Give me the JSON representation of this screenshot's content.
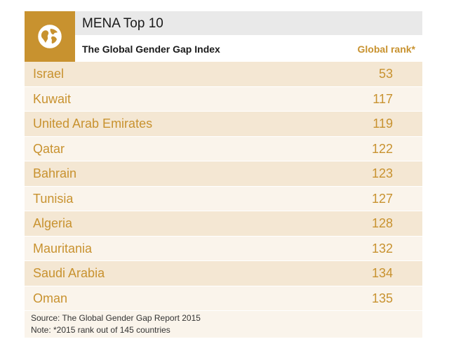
{
  "header": {
    "title": "MENA Top 10",
    "subtitle": "The Global Gender Gap Index",
    "column_label": "Global rank*",
    "icon": "globe-icon",
    "accent_color": "#c8922f"
  },
  "rows": [
    {
      "country": "Israel",
      "rank": "53"
    },
    {
      "country": "Kuwait",
      "rank": "117"
    },
    {
      "country": "United Arab Emirates",
      "rank": "119"
    },
    {
      "country": "Qatar",
      "rank": "122"
    },
    {
      "country": "Bahrain",
      "rank": "123"
    },
    {
      "country": "Tunisia",
      "rank": "127"
    },
    {
      "country": "Algeria",
      "rank": "128"
    },
    {
      "country": "Mauritania",
      "rank": "132"
    },
    {
      "country": "Saudi Arabia",
      "rank": "134"
    },
    {
      "country": "Oman",
      "rank": "135"
    }
  ],
  "footer": {
    "source": "Source: The Global Gender Gap Report 2015",
    "note": "Note: *2015 rank out of 145 countries"
  }
}
